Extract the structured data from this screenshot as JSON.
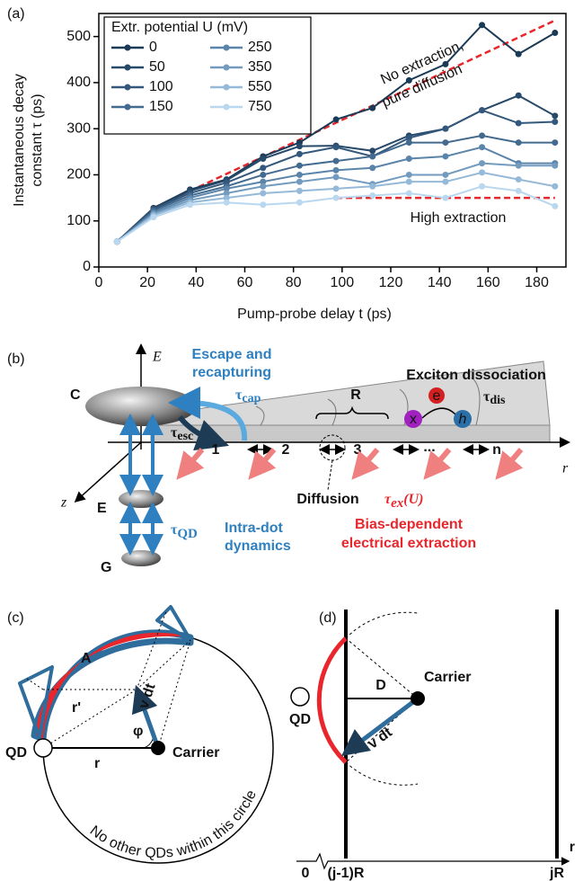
{
  "chart_data": {
    "type": "line",
    "panel_label": "(a)",
    "xlabel": "Pump-probe delay t (ps)",
    "ylabel": [
      "Instantaneous decay",
      "constant τ (ps)"
    ],
    "legend_title": "Extr. potential U (mV)",
    "x": [
      7.5,
      22.5,
      37.5,
      52.5,
      67.5,
      82.5,
      97.5,
      112.5,
      127.5,
      142.5,
      157.5,
      172.5,
      187.5
    ],
    "series": [
      {
        "name": "0",
        "color": "#1a3a56",
        "values": [
          55,
          128,
          168,
          190,
          240,
          270,
          320,
          345,
          405,
          440,
          525,
          462,
          508
        ]
      },
      {
        "name": "50",
        "color": "#27496a",
        "values": [
          55,
          127,
          165,
          188,
          235,
          262,
          263,
          252,
          285,
          300,
          340,
          372,
          328
        ]
      },
      {
        "name": "100",
        "color": "#33587c",
        "values": [
          55,
          125,
          160,
          183,
          215,
          245,
          260,
          240,
          280,
          300,
          340,
          312,
          315
        ]
      },
      {
        "name": "150",
        "color": "#436a8f",
        "values": [
          55,
          122,
          155,
          175,
          200,
          220,
          230,
          240,
          270,
          270,
          285,
          270,
          270
        ]
      },
      {
        "name": "250",
        "color": "#5a84a9",
        "values": [
          55,
          118,
          150,
          170,
          185,
          200,
          210,
          215,
          235,
          240,
          260,
          225,
          225
        ]
      },
      {
        "name": "350",
        "color": "#729bbf",
        "values": [
          55,
          115,
          145,
          160,
          175,
          185,
          195,
          180,
          200,
          200,
          225,
          220,
          220
        ]
      },
      {
        "name": "550",
        "color": "#95b9d8",
        "values": [
          55,
          112,
          140,
          150,
          160,
          165,
          170,
          175,
          185,
          185,
          205,
          190,
          175
        ]
      },
      {
        "name": "750",
        "color": "#b9d7ee",
        "values": [
          55,
          108,
          135,
          140,
          135,
          140,
          150,
          155,
          160,
          150,
          175,
          165,
          132
        ]
      }
    ],
    "annotations": [
      {
        "text": [
          "No extraction,",
          "pure diffusion"
        ],
        "x": [
          22.5,
          187.5
        ],
        "y": [
          128,
          535
        ],
        "color": "#e8262b"
      },
      {
        "text": [
          "High extraction"
        ],
        "x": [
          97.5,
          187.5
        ],
        "y": [
          150,
          150
        ],
        "color": "#e8262b"
      }
    ],
    "xlim": [
      0,
      192
    ],
    "ylim": [
      0,
      550
    ],
    "xticks": [
      0,
      20,
      40,
      60,
      80,
      100,
      120,
      140,
      160,
      180
    ],
    "yticks": [
      0,
      100,
      200,
      300,
      400,
      500
    ]
  },
  "diagrams": {
    "b": {
      "panel_label": "(b)",
      "axis_e": "E",
      "axis_r": "r",
      "axis_z": "z",
      "levels": [
        "C",
        "E",
        "G"
      ],
      "escape": [
        "Escape and",
        "recapturing"
      ],
      "tau_cap": {
        "symbol": "τ",
        "sub": "cap"
      },
      "tau_esc": {
        "symbol": "τ",
        "sub": "esc"
      },
      "spacing": "R",
      "sites": [
        "1",
        "2",
        "3",
        "...",
        "n"
      ],
      "dissociation": "Exciton dissociation",
      "tau_dis": {
        "symbol": "τ",
        "sub": "dis"
      },
      "particles": [
        "x",
        "e",
        "h"
      ],
      "diffusion": "Diffusion",
      "tau_ex": {
        "symbol": "τ",
        "sub": "ex",
        "tail": "(U)"
      },
      "extraction": [
        "Bias-dependent",
        "electrical extraction"
      ],
      "tau_qd": {
        "symbol": "τ",
        "sub": "QD"
      },
      "intra_dot": [
        "Intra-dot",
        "dynamics"
      ]
    },
    "c": {
      "panel_label": "(c)",
      "area": "A",
      "qd": "QD",
      "r": "r",
      "r_prime": "r'",
      "phi": "φ",
      "vdt": "v dt",
      "carrier": "Carrier",
      "circle_note": "No other QDs within this circle"
    },
    "d": {
      "panel_label": "(d)",
      "qd": "QD",
      "distance": "D",
      "carrier": "Carrier",
      "vdt": "v dt",
      "axis": "r",
      "axis_ticks": [
        "0",
        "(j-1)R",
        "jR"
      ]
    }
  }
}
